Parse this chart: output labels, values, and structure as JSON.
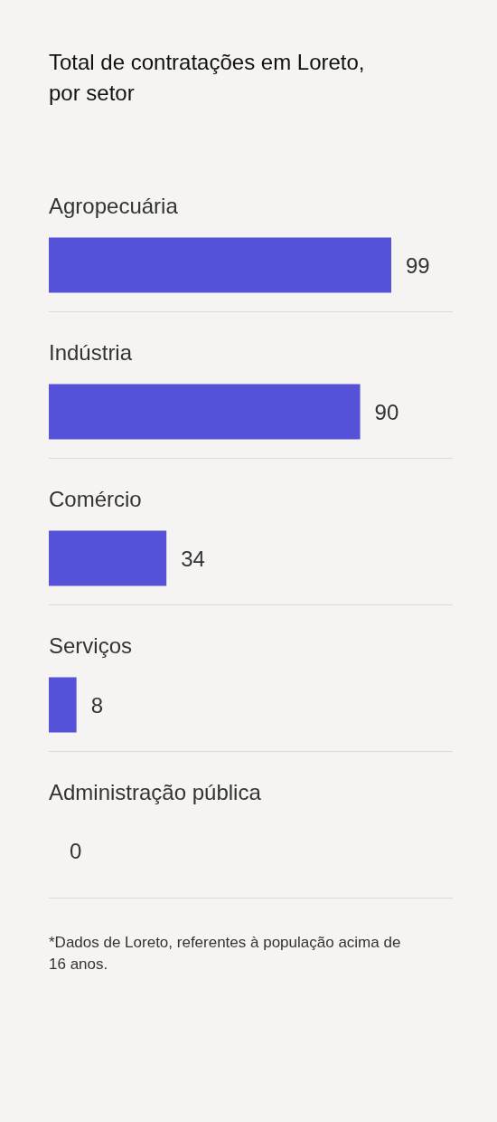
{
  "chart_data": {
    "type": "bar",
    "orientation": "horizontal",
    "title": "Total de contratações em Loreto, por setor",
    "categories": [
      "Agropecuária",
      "Indústria",
      "Comércio",
      "Serviços",
      "Administração pública"
    ],
    "values": [
      99,
      90,
      34,
      8,
      0
    ],
    "color": "#5551d8",
    "data_labels": true,
    "annotations": [
      "*Dados de Loreto, referentes à população acima de 16 anos."
    ]
  }
}
